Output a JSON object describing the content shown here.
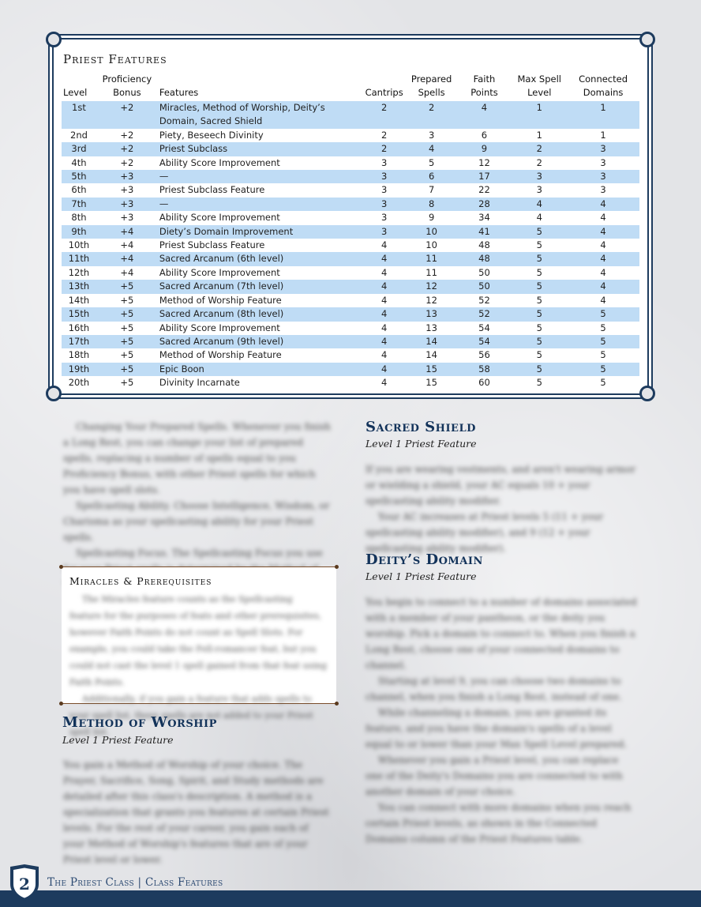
{
  "table": {
    "title": "Priest Features",
    "headers": [
      "Level",
      "Proficiency Bonus",
      "Features",
      "Cantrips",
      "Prepared Spells",
      "Faith Points",
      "Max Spell Level",
      "Connected Domains"
    ],
    "header_top": [
      "",
      "Proficiency",
      "",
      "",
      "Prepared",
      "Faith",
      "Max Spell",
      "Connected"
    ],
    "header_bottom": [
      "Level",
      "Bonus",
      "Features",
      "Cantrips",
      "Spells",
      "Points",
      "Level",
      "Domains"
    ],
    "rows": [
      [
        "1st",
        "+2",
        "Miracles, Method of Worship, Deity’s Domain, Sacred Shield",
        "2",
        "2",
        "4",
        "1",
        "1"
      ],
      [
        "2nd",
        "+2",
        "Piety, Beseech Divinity",
        "2",
        "3",
        "6",
        "1",
        "1"
      ],
      [
        "3rd",
        "+2",
        "Priest Subclass",
        "2",
        "4",
        "9",
        "2",
        "3"
      ],
      [
        "4th",
        "+2",
        "Ability Score Improvement",
        "3",
        "5",
        "12",
        "2",
        "3"
      ],
      [
        "5th",
        "+3",
        "—",
        "3",
        "6",
        "17",
        "3",
        "3"
      ],
      [
        "6th",
        "+3",
        "Priest Subclass Feature",
        "3",
        "7",
        "22",
        "3",
        "3"
      ],
      [
        "7th",
        "+3",
        "—",
        "3",
        "8",
        "28",
        "4",
        "4"
      ],
      [
        "8th",
        "+3",
        "Ability Score Improvement",
        "3",
        "9",
        "34",
        "4",
        "4"
      ],
      [
        "9th",
        "+4",
        "Diety’s Domain Improvement",
        "3",
        "10",
        "41",
        "5",
        "4"
      ],
      [
        "10th",
        "+4",
        "Priest Subclass Feature",
        "4",
        "10",
        "48",
        "5",
        "4"
      ],
      [
        "11th",
        "+4",
        "Sacred Arcanum (6th level)",
        "4",
        "11",
        "48",
        "5",
        "4"
      ],
      [
        "12th",
        "+4",
        "Ability Score Improvement",
        "4",
        "11",
        "50",
        "5",
        "4"
      ],
      [
        "13th",
        "+5",
        "Sacred Arcanum (7th level)",
        "4",
        "12",
        "50",
        "5",
        "4"
      ],
      [
        "14th",
        "+5",
        "Method of Worship Feature",
        "4",
        "12",
        "52",
        "5",
        "4"
      ],
      [
        "15th",
        "+5",
        "Sacred Arcanum (8th level)",
        "4",
        "13",
        "52",
        "5",
        "5"
      ],
      [
        "16th",
        "+5",
        "Ability Score Improvement",
        "4",
        "13",
        "54",
        "5",
        "5"
      ],
      [
        "17th",
        "+5",
        "Sacred Arcanum (9th level)",
        "4",
        "14",
        "54",
        "5",
        "5"
      ],
      [
        "18th",
        "+5",
        "Method of Worship Feature",
        "4",
        "14",
        "56",
        "5",
        "5"
      ],
      [
        "19th",
        "+5",
        "Epic Boon",
        "4",
        "15",
        "58",
        "5",
        "5"
      ],
      [
        "20th",
        "+5",
        "Divinity Incarnate",
        "4",
        "15",
        "60",
        "5",
        "5"
      ]
    ]
  },
  "left_column": {
    "paragraphs": [
      "Changing Your Prepared Spells. Whenever you finish a Long Rest, you can change your list of prepared spells, replacing a number of spells equal to you Proficiency Bonus, with other Priest spells for which you have spell slots.",
      "Spellcasting Ability. Choose Intelligence, Wisdom, or Charisma as your spellcasting ability for your Priest spells.",
      "Spellcasting Focus. The Spellcasting Focus you use for your Priest spells is determined by the Method of Worship you choose."
    ]
  },
  "sidebar": {
    "title": "Miracles & Prerequisites",
    "paragraphs": [
      "The Miracles feature counts as the Spellcasting feature for the purposes of feats and other prerequisites, however Faith Points do not count as Spell Slots. For example, you could take the Fell-romancer feat, but you could not cast the level 1 spell gained from that feat using Faith Points.",
      "Additionally, if you gain a feature that adds spells to your spell list, these spells are not added to your Priest spell list."
    ]
  },
  "method_of_worship": {
    "heading": "Method of Worship",
    "subtitle": "Level 1 Priest Feature",
    "paragraphs": [
      "You gain a Method of Worship of your choice. The Prayer, Sacrifice, Song, Spirit, and Study methods are detailed after this class's description. A method is a specialization that grants you features at certain Priest levels. For the rest of your career, you gain each of your Method of Worship's features that are of your Priest level or lower."
    ]
  },
  "sacred_shield": {
    "heading": "Sacred Shield",
    "subtitle": "Level 1 Priest Feature",
    "paragraphs": [
      "If you are wearing vestments, and aren't wearing armor or wielding a shield, your AC equals 10 + your spellcasting ability modifier.",
      "Your AC increases at Priest levels 5 (11 + your spellcasting ability modifier), and 9 (12 + your spellcasting ability modifier)."
    ]
  },
  "deitys_domain": {
    "heading": "Deity’s Domain",
    "subtitle": "Level 1 Priest Feature",
    "paragraphs": [
      "You begin to connect to a number of domains associated with a member of your pantheon, or the deity you worship. Pick a domain to connect to. When you finish a Long Rest, choose one of your connected domains to channel.",
      "Starting at level 9, you can choose two domains to channel, when you finish a Long Rest, instead of one.",
      "While channeling a domain, you are granted its feature, and you have the domain's spells of a level equal to or lower than your Max Spell Level prepared.",
      "Whenever you gain a Priest level, you can replace one of the Deity's Domains you are connected to with another domain of your choice.",
      "You can connect with more domains when you reach certain Priest levels, as shown in the Connected Domains column of the Priest Features table."
    ]
  },
  "footer": {
    "page_number": "2",
    "text": "The Priest Class | Class Features",
    "colors": {
      "navy": "#1d3b5e",
      "row_highlight": "#bfdcf5"
    }
  }
}
